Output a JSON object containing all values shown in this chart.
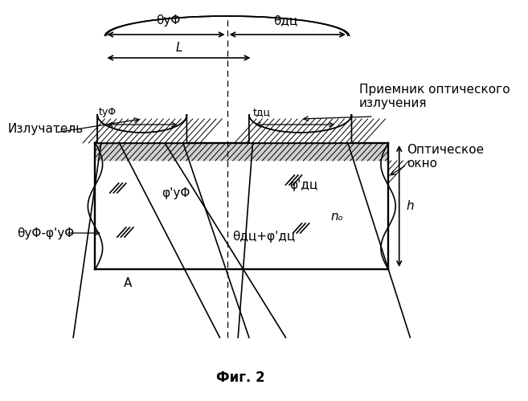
{
  "fig_label": "Фиг. 2",
  "label_izluchatel": "Излучатель",
  "label_priemnik": "Приемник оптического\nизлучения",
  "label_optwin": "Оптическое\nокно",
  "label_no": "nₒ",
  "label_h": "h",
  "label_L": "L",
  "label_A": "A",
  "label_theta_uf": "θуΦ",
  "label_theta_dc": "θдц",
  "label_t_uf": "tуΦ",
  "label_t_dc": "tдц",
  "label_phi_uf": "φ'уΦ",
  "label_phi_dc": "φ'дц",
  "label_theta_uf_phi_uf": "θуΦ-φ'уΦ",
  "label_theta_dc_phi_dc": "θдц+φ'дц",
  "bg_color": "#ffffff",
  "line_color": "#000000",
  "hatch_color": "#000000"
}
